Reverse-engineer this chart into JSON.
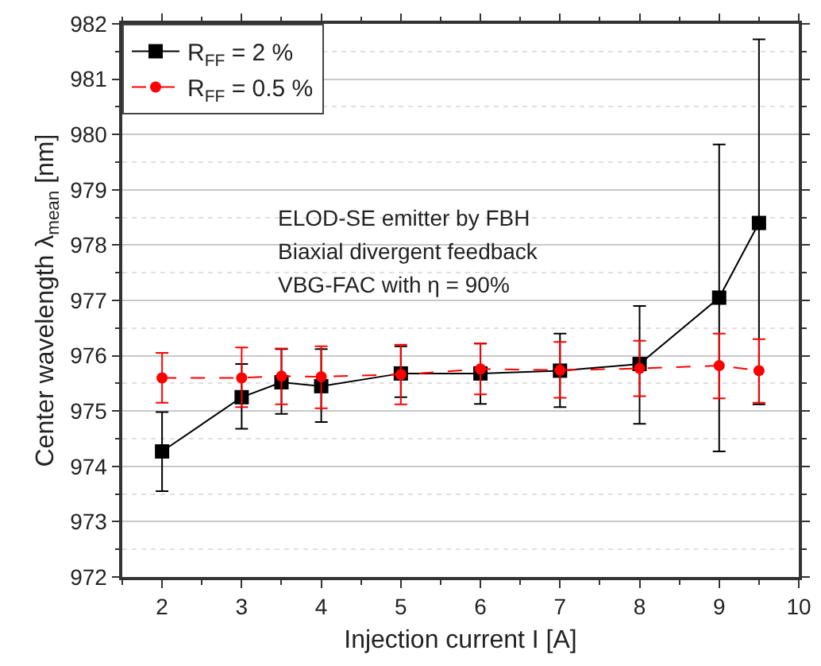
{
  "chart_data": {
    "type": "line",
    "xlabel": "Injection current I [A]",
    "ylabel": "Center wavelength λ$_{mean}$ [nm]",
    "x": [
      2,
      3,
      3.5,
      4,
      5,
      6,
      7,
      8,
      9,
      9.5
    ],
    "series": [
      {
        "name": "R$_{FF}$ = 2 %",
        "color": "#000000",
        "marker": "square",
        "line_style": "solid",
        "values": [
          974.27,
          975.25,
          975.52,
          975.45,
          975.68,
          975.68,
          975.73,
          975.85,
          977.05,
          978.4
        ],
        "errors": [
          [
            973.55,
            974.98
          ],
          [
            974.68,
            975.85
          ],
          [
            974.95,
            976.12
          ],
          [
            974.8,
            976.12
          ],
          [
            975.25,
            976.17
          ],
          [
            975.13,
            976.22
          ],
          [
            975.07,
            976.4
          ],
          [
            974.77,
            976.9
          ],
          [
            974.27,
            979.82
          ],
          [
            975.12,
            981.72
          ]
        ]
      },
      {
        "name": "R$_{FF}$ = 0.5 %",
        "color": "#ff0000",
        "marker": "circle",
        "line_style": "dashed",
        "values": [
          975.6,
          975.6,
          975.63,
          975.62,
          975.66,
          975.76,
          975.74,
          975.77,
          975.82,
          975.73
        ],
        "errors": [
          [
            975.15,
            976.05
          ],
          [
            975.07,
            976.15
          ],
          [
            975.12,
            976.13
          ],
          [
            975.05,
            976.17
          ],
          [
            975.12,
            976.2
          ],
          [
            975.3,
            976.22
          ],
          [
            975.24,
            976.25
          ],
          [
            975.27,
            976.27
          ],
          [
            975.23,
            976.4
          ],
          [
            975.15,
            976.3
          ]
        ]
      }
    ],
    "xlim": [
      1.5,
      10
    ],
    "xticks": [
      2,
      3,
      4,
      5,
      6,
      7,
      8,
      9,
      10
    ],
    "ylim": [
      972,
      982
    ],
    "yticks": [
      972,
      973,
      974,
      975,
      976,
      977,
      978,
      979,
      980,
      981,
      982
    ],
    "grid": "y",
    "legend": "top left",
    "annotations": [
      "ELOD-SE emitter by FBH",
      "Biaxial divergent feedback",
      "VBG-FAC with η = 90%"
    ]
  }
}
